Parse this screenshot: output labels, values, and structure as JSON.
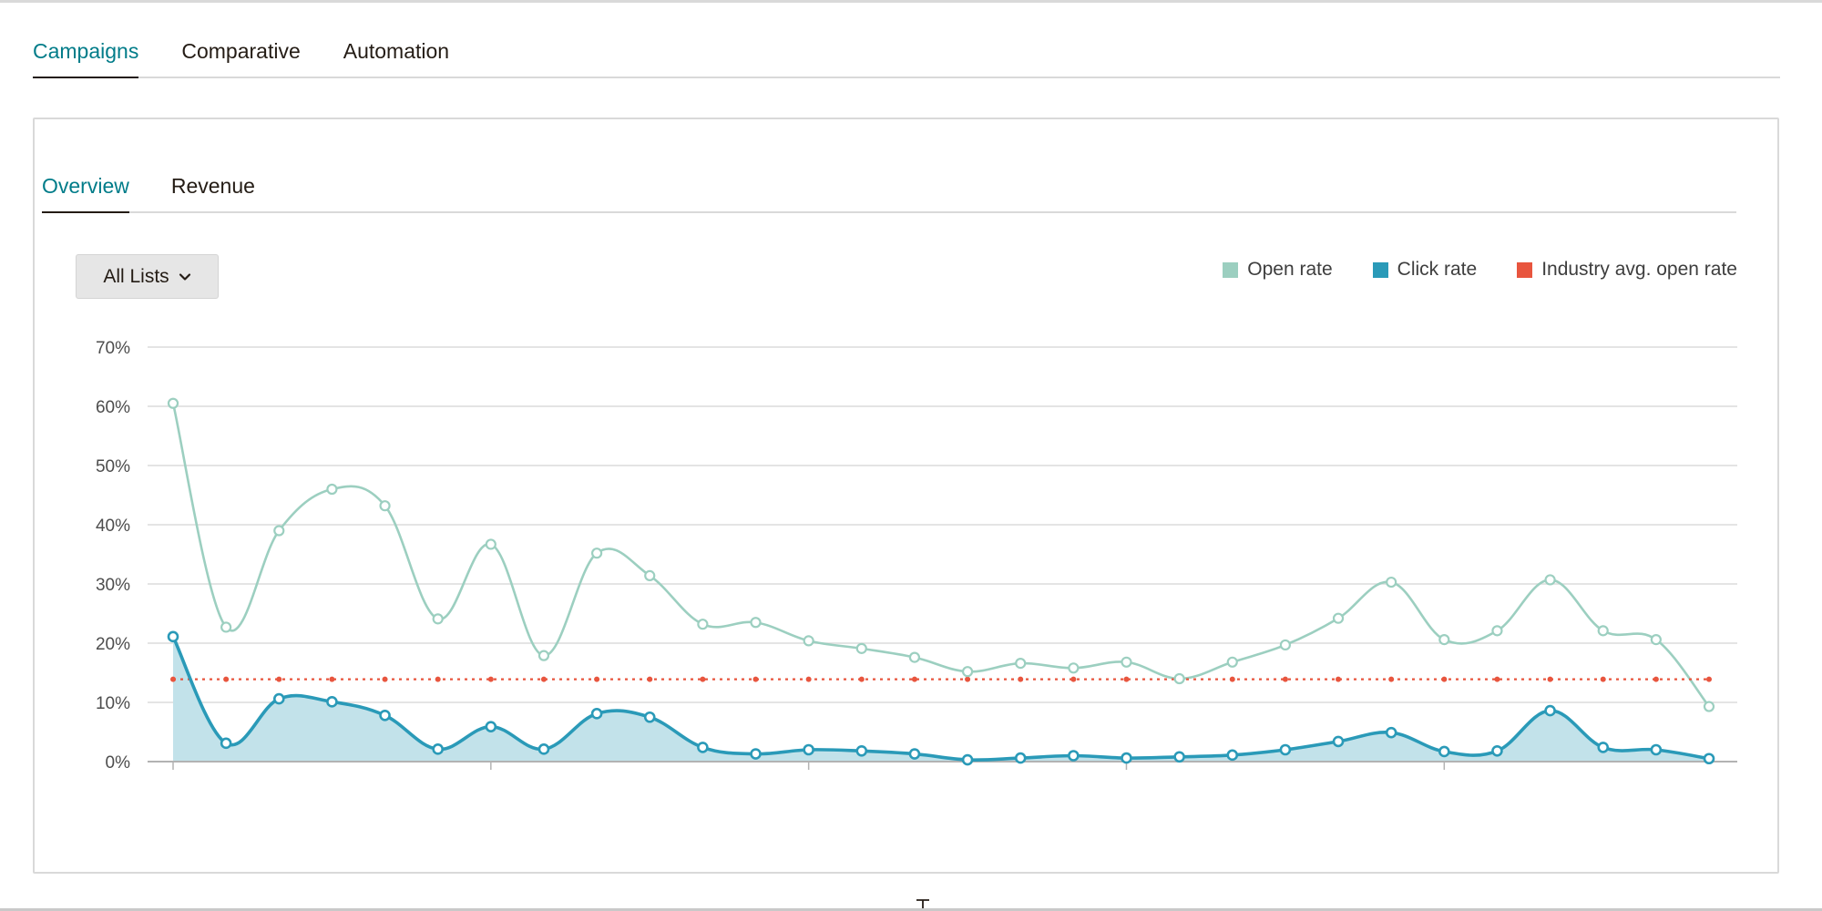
{
  "main_tabs": [
    {
      "label": "Campaigns",
      "active": true
    },
    {
      "label": "Comparative",
      "active": false
    },
    {
      "label": "Automation",
      "active": false
    }
  ],
  "sub_tabs": [
    {
      "label": "Overview",
      "active": true
    },
    {
      "label": "Revenue",
      "active": false
    }
  ],
  "list_filter": {
    "selected": "All Lists",
    "icon": "chevron-down-icon"
  },
  "colors": {
    "accent": "#007c89",
    "open_rate": "#9ccfc0",
    "click_rate": "#2a9ab8",
    "click_fill": "#c2e2ea",
    "industry": "#e8553e"
  },
  "chart_data": {
    "type": "line",
    "y_tick_labels": [
      "0%",
      "10%",
      "20%",
      "30%",
      "40%",
      "50%",
      "60%",
      "70%"
    ],
    "ylim": [
      0,
      70
    ],
    "grid": true,
    "legend_position": "top-right",
    "x": [
      1,
      2,
      3,
      4,
      5,
      6,
      7,
      8,
      9,
      10,
      11,
      12,
      13,
      14,
      15,
      16,
      17,
      18,
      19,
      20,
      21,
      22,
      23,
      24,
      25,
      26,
      27,
      28,
      29,
      30
    ],
    "series": [
      {
        "name": "Open rate",
        "values": [
          60.5,
          22.7,
          39,
          46,
          43.2,
          24.1,
          36.7,
          17.9,
          35.2,
          31.4,
          23.2,
          23.5,
          20.4,
          19.1,
          17.6,
          15.2,
          16.6,
          15.8,
          16.8,
          14,
          16.8,
          19.7,
          24.2,
          30.3,
          20.6,
          22.1,
          30.7,
          22.1,
          20.6,
          9.3
        ]
      },
      {
        "name": "Click rate",
        "values": [
          21.1,
          3.1,
          10.6,
          10.1,
          7.8,
          2.1,
          5.9,
          2.1,
          8.1,
          7.5,
          2.4,
          1.3,
          2,
          1.8,
          1.3,
          0.3,
          0.6,
          1,
          0.6,
          0.8,
          1.1,
          2,
          3.4,
          4.9,
          1.7,
          1.8,
          8.6,
          2.4,
          2,
          0.5
        ]
      },
      {
        "name": "Industry avg. open rate",
        "values": [
          13.9,
          13.9,
          13.9,
          13.9,
          13.9,
          13.9,
          13.9,
          13.9,
          13.9,
          13.9,
          13.9,
          13.9,
          13.9,
          13.9,
          13.9,
          13.9,
          13.9,
          13.9,
          13.9,
          13.9,
          13.9,
          13.9,
          13.9,
          13.9,
          13.9,
          13.9,
          13.9,
          13.9,
          13.9,
          13.9
        ]
      }
    ]
  }
}
